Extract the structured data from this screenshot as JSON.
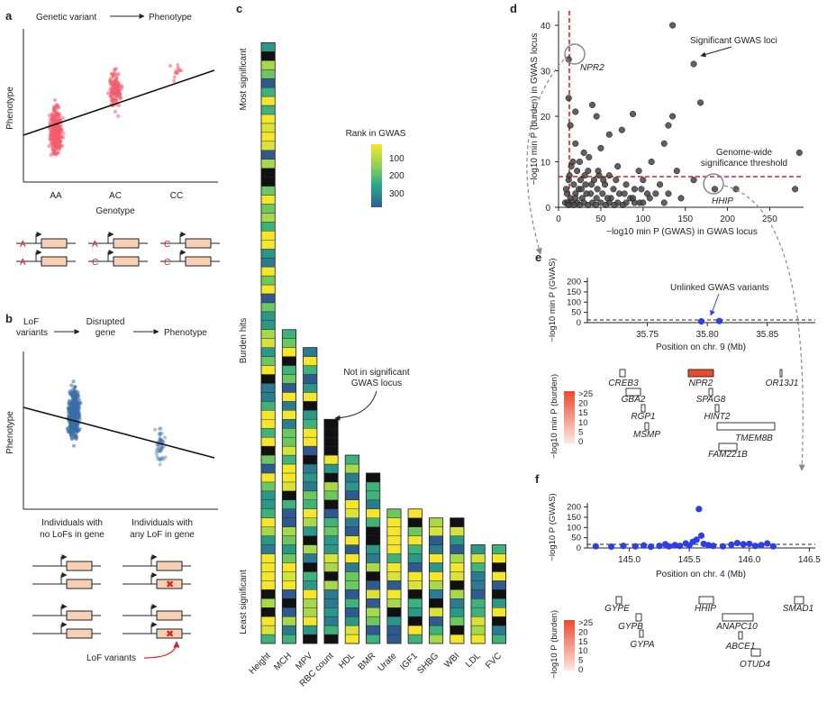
{
  "colors": {
    "red": "#f25c6e",
    "blue": "#3b6ea8",
    "gold": "#f5e62c",
    "black": "#111111",
    "dashed_red": "#e02020",
    "point_blue": "#2b3fe6",
    "gene_highlight": "#e94a2e",
    "gene_box_fill": "#f7cfb2"
  },
  "panel_a": {
    "label": "a",
    "flow_left": "Genetic variant",
    "flow_right": "Phenotype",
    "ylabel": "Phenotype",
    "xlabel": "Genotype",
    "genotypes": [
      "AA",
      "AC",
      "CC"
    ],
    "allele_pairs": [
      [
        "A",
        "A"
      ],
      [
        "A",
        "C"
      ],
      [
        "C",
        "C"
      ]
    ]
  },
  "panel_b": {
    "label": "b",
    "flow_1": "LoF\nvariants",
    "flow_1_l1": "LoF",
    "flow_1_l2": "variants",
    "flow_2_l1": "Disrupted",
    "flow_2_l2": "gene",
    "flow_3": "Phenotype",
    "ylabel": "Phenotype",
    "group1_l1": "Individuals with",
    "group1_l2": "no LoFs in gene",
    "group2_l1": "Individuals with",
    "group2_l2": "any LoF in gene",
    "lof_label": "LoF variants"
  },
  "panel_c": {
    "label": "c",
    "y_top": "Most significant",
    "y_mid": "Burden hits",
    "y_bottom": "Least significant",
    "legend_title": "Rank in GWAS",
    "legend_ticks": [
      "100",
      "200",
      "300"
    ],
    "annotation_l1": "Not in significant",
    "annotation_l2": "GWAS locus",
    "traits": [
      "Height",
      "MCH",
      "MPV",
      "RBC count",
      "HDL",
      "BMR",
      "Urate",
      "IGF1",
      "SHBG",
      "WBI",
      "LDL",
      "FVC"
    ],
    "column_lengths": [
      67,
      35,
      33,
      25,
      21,
      19,
      15,
      15,
      14,
      14,
      11,
      11
    ]
  },
  "panel_d": {
    "label": "d",
    "ylabel": "−log10 min P (burden) in GWAS locus",
    "xlabel": "−log10 min P (GWAS) in GWAS locus",
    "x_ticks": [
      "0",
      "50",
      "100",
      "150",
      "200",
      "250"
    ],
    "y_ticks": [
      "0",
      "10",
      "20",
      "30",
      "40"
    ],
    "ann_loci": "Significant GWAS loci",
    "ann_thresh_l1": "Genome-wide",
    "ann_thresh_l2": "significance threshold",
    "gene_npr2": "NPR2",
    "gene_hhip": "HHIP"
  },
  "chart_data": [
    {
      "type": "scatter",
      "xlabel": "−log10 min P (GWAS) in GWAS locus",
      "ylabel": "−log10 min P (burden) in GWAS locus",
      "xlim": [
        0,
        290
      ],
      "ylim": [
        0,
        42
      ],
      "threshold_x": 7.3,
      "threshold_y": 5.6,
      "points": [
        [
          135,
          40
        ],
        [
          160,
          31.5
        ],
        [
          12,
          32.5
        ],
        [
          12,
          24
        ],
        [
          14,
          18
        ],
        [
          40,
          22.5
        ],
        [
          20,
          21
        ],
        [
          45,
          20
        ],
        [
          60,
          16
        ],
        [
          75,
          17
        ],
        [
          88,
          20.5
        ],
        [
          130,
          18
        ],
        [
          125,
          14
        ],
        [
          135,
          20
        ],
        [
          168,
          23
        ],
        [
          285,
          12
        ],
        [
          20,
          14
        ],
        [
          30,
          12
        ],
        [
          50,
          13
        ],
        [
          36,
          11
        ],
        [
          25,
          10
        ],
        [
          70,
          9
        ],
        [
          110,
          10
        ],
        [
          15,
          9
        ],
        [
          22,
          8
        ],
        [
          35,
          8
        ],
        [
          48,
          7
        ],
        [
          60,
          7
        ],
        [
          95,
          8
        ],
        [
          140,
          8
        ],
        [
          160,
          6
        ],
        [
          185,
          4
        ],
        [
          280,
          4
        ],
        [
          210,
          4
        ],
        [
          120,
          5
        ],
        [
          100,
          6
        ],
        [
          12,
          6
        ],
        [
          18,
          5
        ],
        [
          26,
          6
        ],
        [
          32,
          5
        ],
        [
          42,
          6
        ],
        [
          55,
          5
        ],
        [
          65,
          4
        ],
        [
          80,
          5
        ],
        [
          90,
          4
        ],
        [
          105,
          3
        ],
        [
          115,
          3
        ],
        [
          130,
          3
        ],
        [
          145,
          2
        ],
        [
          10,
          3
        ],
        [
          14,
          2
        ],
        [
          20,
          3
        ],
        [
          28,
          2
        ],
        [
          38,
          3
        ],
        [
          45,
          2
        ],
        [
          52,
          3
        ],
        [
          62,
          2
        ],
        [
          72,
          3
        ],
        [
          85,
          2
        ],
        [
          96,
          1
        ],
        [
          108,
          2
        ],
        [
          125,
          1
        ],
        [
          8,
          1
        ],
        [
          11,
          1
        ],
        [
          16,
          1
        ],
        [
          22,
          1
        ],
        [
          30,
          1
        ],
        [
          40,
          1
        ],
        [
          50,
          1
        ],
        [
          60,
          1
        ],
        [
          70,
          1
        ],
        [
          80,
          1
        ],
        [
          90,
          1
        ],
        [
          100,
          1
        ],
        [
          12,
          0.5
        ],
        [
          18,
          0.5
        ],
        [
          25,
          0.5
        ],
        [
          35,
          0.5
        ],
        [
          44,
          0.5
        ],
        [
          56,
          0.5
        ],
        [
          66,
          0.5
        ],
        [
          76,
          0.5
        ],
        [
          20,
          2
        ],
        [
          24,
          4
        ],
        [
          33,
          3
        ],
        [
          46,
          4
        ],
        [
          58,
          2
        ],
        [
          68,
          6
        ],
        [
          78,
          3
        ],
        [
          88,
          2
        ],
        [
          98,
          4
        ],
        [
          9,
          4
        ],
        [
          13,
          7
        ],
        [
          17,
          10
        ],
        [
          27,
          4
        ],
        [
          31,
          7
        ],
        [
          39,
          5
        ],
        [
          47,
          8
        ],
        [
          53,
          6
        ]
      ]
    },
    {
      "type": "scatter",
      "xlabel": "Position on chr. 9 (Mb)",
      "ylabel": "−log10 min P (GWAS)",
      "xlim": [
        35.7,
        35.89
      ],
      "ylim": [
        0,
        220
      ],
      "x_ticks": [
        "35.75",
        "35.80",
        "35.85"
      ],
      "y_ticks": [
        "0",
        "50",
        "100",
        "150",
        "200"
      ],
      "points": [
        [
          35.795,
          6
        ],
        [
          35.81,
          8
        ]
      ]
    },
    {
      "type": "scatter",
      "xlabel": "Position on chr. 4 (Mb)",
      "ylabel": "−log10 P (GWAS)",
      "xlim": [
        144.65,
        146.55
      ],
      "ylim": [
        0,
        220
      ],
      "x_ticks": [
        "145.0",
        "145.5",
        "146.0",
        "146.5"
      ],
      "y_ticks": [
        "0",
        "50",
        "100",
        "150",
        "200"
      ],
      "points": [
        [
          144.72,
          8
        ],
        [
          144.85,
          6
        ],
        [
          144.95,
          10
        ],
        [
          145.05,
          8
        ],
        [
          145.12,
          12
        ],
        [
          145.18,
          6
        ],
        [
          145.25,
          10
        ],
        [
          145.3,
          18
        ],
        [
          145.33,
          8
        ],
        [
          145.38,
          14
        ],
        [
          145.42,
          10
        ],
        [
          145.47,
          22
        ],
        [
          145.5,
          12
        ],
        [
          145.53,
          30
        ],
        [
          145.56,
          40
        ],
        [
          145.58,
          190
        ],
        [
          145.6,
          60
        ],
        [
          145.62,
          20
        ],
        [
          145.66,
          14
        ],
        [
          145.7,
          10
        ],
        [
          145.78,
          8
        ],
        [
          145.85,
          16
        ],
        [
          145.9,
          24
        ],
        [
          145.95,
          18
        ],
        [
          146.0,
          20
        ],
        [
          146.05,
          10
        ],
        [
          146.1,
          14
        ],
        [
          146.15,
          22
        ],
        [
          146.2,
          8
        ]
      ]
    }
  ],
  "panel_e": {
    "label": "e",
    "ylabel": "−log10 min P (GWAS)",
    "xlabel": "Position on chr. 9 (Mb)",
    "y_ticks": [
      "0",
      "50",
      "100",
      "150",
      "200"
    ],
    "x_ticks": [
      "35.75",
      "35.80",
      "35.85"
    ],
    "annotation": "Unlinked GWAS variants",
    "burden_ylabel": "−log10 min P (burden)",
    "legend_ticks": [
      ">25",
      "20",
      "15",
      "10",
      "5",
      "0"
    ],
    "genes": [
      "CREB3",
      "NPR2",
      "OR13J1",
      "GBA2",
      "SPAG8",
      "RGP1",
      "HINT2",
      "MSMP",
      "TMEM8B",
      "FAM221B"
    ]
  },
  "panel_f": {
    "label": "f",
    "ylabel": "−log10 P (GWAS)",
    "xlabel": "Position on chr. 4 (Mb)",
    "y_ticks": [
      "0",
      "50",
      "100",
      "150",
      "200"
    ],
    "x_ticks": [
      "145.0",
      "145.5",
      "146.0",
      "146.5"
    ],
    "burden_ylabel": "−log10 P (burden)",
    "legend_ticks": [
      ">25",
      "20",
      "15",
      "10",
      "5",
      "0"
    ],
    "genes": [
      "GYPE",
      "HHIP",
      "SMAD1",
      "GYPB",
      "ANAPC10",
      "GYPA",
      "ABCE1",
      "OTUD4"
    ]
  }
}
